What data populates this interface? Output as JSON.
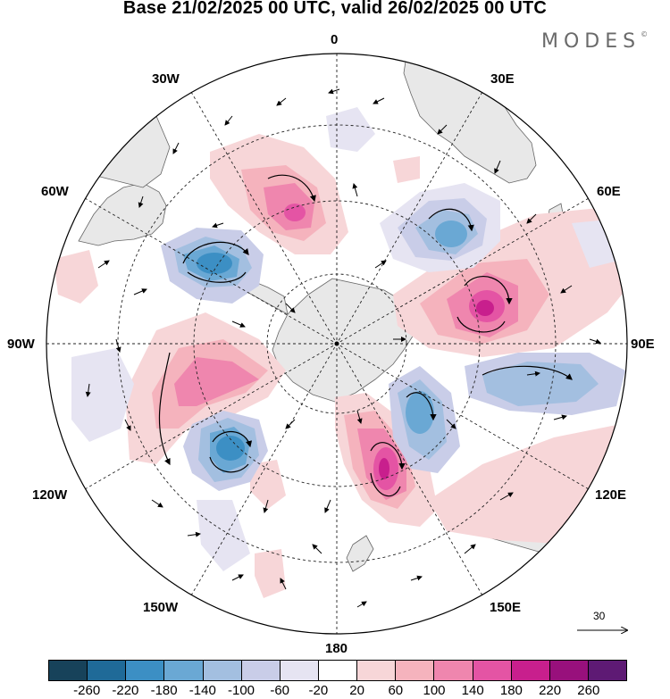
{
  "title": "Base 21/02/2025 00 UTC, valid 26/02/2025 00 UTC",
  "brand": "MODES",
  "brand_mark": "©",
  "longitude_labels": {
    "n": "0",
    "e30": "30E",
    "e60": "60E",
    "e90": "90E",
    "e120": "120E",
    "e150": "150E",
    "s": "180",
    "w150": "150W",
    "w120": "120W",
    "w90": "90W",
    "w60": "60W",
    "w30": "30W"
  },
  "reference_vector": {
    "label": "30"
  },
  "colorbar": {
    "colors": [
      "#17425a",
      "#1f6a98",
      "#3c8fc4",
      "#6aa8d4",
      "#a3bfe0",
      "#c9cde8",
      "#e6e4f2",
      "#ffffff",
      "#f7d6d8",
      "#f5b3bd",
      "#ef86ae",
      "#e454a4",
      "#c81f8d",
      "#98107c",
      "#5e1a74"
    ],
    "tick_labels": [
      "-260",
      "-220",
      "-180",
      "-140",
      "-100",
      "-60",
      "-20",
      "20",
      "60",
      "100",
      "140",
      "180",
      "220",
      "260"
    ]
  },
  "map": {
    "projection": "south polar stereographic",
    "land_color": "#e8e8e8",
    "coast_color": "#666666",
    "grid_style": "dotted"
  }
}
